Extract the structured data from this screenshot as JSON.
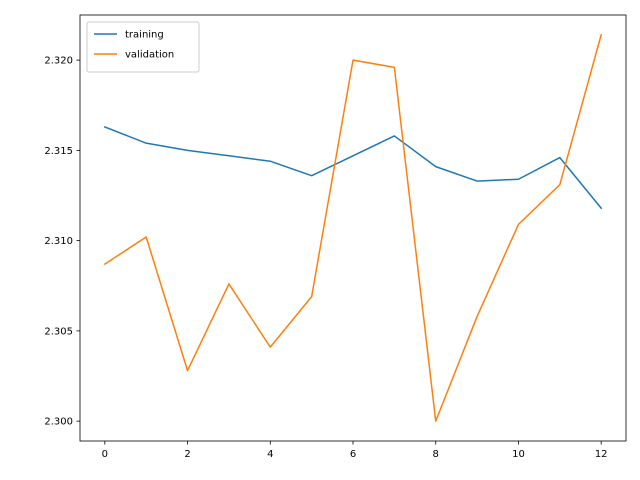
{
  "chart_data": {
    "type": "line",
    "x": [
      0,
      1,
      2,
      3,
      4,
      5,
      6,
      7,
      8,
      9,
      10,
      11,
      12
    ],
    "series": [
      {
        "name": "training",
        "color": "#1f77b4",
        "values": [
          2.3163,
          2.3154,
          2.315,
          2.3147,
          2.3144,
          2.3136,
          2.3147,
          2.3158,
          2.3141,
          2.3133,
          2.3134,
          2.3146,
          2.3118
        ]
      },
      {
        "name": "validation",
        "color": "#ff7f0e",
        "values": [
          2.3087,
          2.3102,
          2.3028,
          2.3076,
          2.3041,
          2.3069,
          2.32,
          2.3196,
          2.3,
          2.3058,
          2.3109,
          2.3131,
          2.3214
        ]
      }
    ],
    "xlim": [
      -0.6,
      12.6
    ],
    "ylim": [
      2.2989,
      2.3225
    ],
    "xticks": [
      0,
      2,
      4,
      6,
      8,
      10,
      12
    ],
    "xtick_labels": [
      "0",
      "2",
      "4",
      "6",
      "8",
      "10",
      "12"
    ],
    "yticks": [
      2.3,
      2.305,
      2.31,
      2.315,
      2.32
    ],
    "ytick_labels": [
      "2.300",
      "2.305",
      "2.310",
      "2.315",
      "2.320"
    ],
    "grid": false,
    "legend_position": "top-left",
    "title": "",
    "xlabel": "",
    "ylabel": ""
  }
}
